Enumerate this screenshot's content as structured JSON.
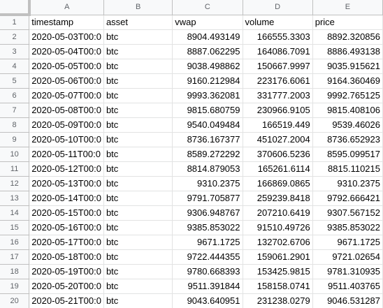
{
  "columns": [
    "A",
    "B",
    "C",
    "D",
    "E"
  ],
  "header_row": [
    "timestamp",
    "asset",
    "vwap",
    "volume",
    "price"
  ],
  "rows": [
    {
      "n": "2",
      "cells": [
        "2020-05-03T00:0",
        "btc",
        "8904.493149",
        "166555.3303",
        "8892.320856"
      ]
    },
    {
      "n": "3",
      "cells": [
        "2020-05-04T00:0",
        "btc",
        "8887.062295",
        "164086.7091",
        "8886.493138"
      ]
    },
    {
      "n": "4",
      "cells": [
        "2020-05-05T00:0",
        "btc",
        "9038.498862",
        "150667.9997",
        "9035.915621"
      ]
    },
    {
      "n": "5",
      "cells": [
        "2020-05-06T00:0",
        "btc",
        "9160.212984",
        "223176.6061",
        "9164.360469"
      ]
    },
    {
      "n": "6",
      "cells": [
        "2020-05-07T00:0",
        "btc",
        "9993.362081",
        "331777.2003",
        "9992.765125"
      ]
    },
    {
      "n": "7",
      "cells": [
        "2020-05-08T00:0",
        "btc",
        "9815.680759",
        "230966.9105",
        "9815.408106"
      ]
    },
    {
      "n": "8",
      "cells": [
        "2020-05-09T00:0",
        "btc",
        "9540.049484",
        "166519.449",
        "9539.46026"
      ]
    },
    {
      "n": "9",
      "cells": [
        "2020-05-10T00:0",
        "btc",
        "8736.167377",
        "451027.2004",
        "8736.652923"
      ]
    },
    {
      "n": "10",
      "cells": [
        "2020-05-11T00:0",
        "btc",
        "8589.272292",
        "370606.5236",
        "8595.099517"
      ]
    },
    {
      "n": "11",
      "cells": [
        "2020-05-12T00:0",
        "btc",
        "8814.879053",
        "165261.6114",
        "8815.110215"
      ]
    },
    {
      "n": "12",
      "cells": [
        "2020-05-13T00:0",
        "btc",
        "9310.2375",
        "166869.0865",
        "9310.2375"
      ]
    },
    {
      "n": "13",
      "cells": [
        "2020-05-14T00:0",
        "btc",
        "9791.705877",
        "259239.8418",
        "9792.666421"
      ]
    },
    {
      "n": "14",
      "cells": [
        "2020-05-15T00:0",
        "btc",
        "9306.948767",
        "207210.6419",
        "9307.567152"
      ]
    },
    {
      "n": "15",
      "cells": [
        "2020-05-16T00:0",
        "btc",
        "9385.853022",
        "91510.49726",
        "9385.853022"
      ]
    },
    {
      "n": "16",
      "cells": [
        "2020-05-17T00:0",
        "btc",
        "9671.1725",
        "132702.6706",
        "9671.1725"
      ]
    },
    {
      "n": "17",
      "cells": [
        "2020-05-18T00:0",
        "btc",
        "9722.444355",
        "159061.2901",
        "9721.02654"
      ]
    },
    {
      "n": "18",
      "cells": [
        "2020-05-19T00:0",
        "btc",
        "9780.668393",
        "153425.9815",
        "9781.310935"
      ]
    },
    {
      "n": "19",
      "cells": [
        "2020-05-20T00:0",
        "btc",
        "9511.391844",
        "158158.0741",
        "9511.403765"
      ]
    },
    {
      "n": "20",
      "cells": [
        "2020-05-21T00:0",
        "btc",
        "9043.640951",
        "231238.0279",
        "9046.531287"
      ]
    }
  ]
}
